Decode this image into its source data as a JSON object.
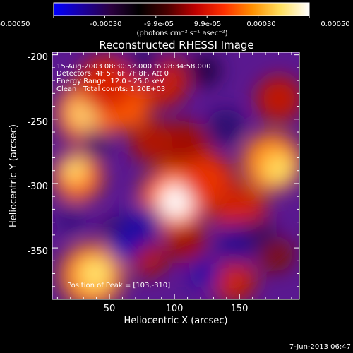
{
  "colorbar": {
    "tick_labels": [
      "-0.00050",
      "-0.00030",
      "-9.9e-05",
      "9.9e-05",
      "0.00030",
      "0.00050"
    ],
    "unit_label": "(photons cm⁻² s⁻¹ asec⁻²)",
    "value_range": [
      -0.0005,
      0.0005
    ],
    "stops": [
      "#0000ff",
      "#1a00a0",
      "#2b0040",
      "#000000",
      "#4a0000",
      "#c00000",
      "#ff3000",
      "#ff9000",
      "#ffe060",
      "#ffffff"
    ]
  },
  "title": "Reconstructed RHESSI Image",
  "info": {
    "line1": "15-Aug-2003 08:30:52.000 to 08:34:58.000",
    "line2": "Detectors: 4F 5F 6F 7F 8F, Att 0",
    "line3": "Energy Range: 12.0 - 25.0 keV",
    "line4_left": "Clean",
    "line4_right": "Total counts: 1.20E+03"
  },
  "peak_label": "Position of Peak = [103,-310]",
  "axes": {
    "xlabel": "Heliocentric X (arcsec)",
    "ylabel": "Heliocentric Y (arcsec)",
    "xlim": [
      6,
      196
    ],
    "ylim": [
      -390,
      -198
    ],
    "xticks": [
      50,
      100,
      150
    ],
    "yticks": [
      -200,
      -250,
      -300,
      -350
    ]
  },
  "footer_date": "7-Jun-2013 06:47"
}
